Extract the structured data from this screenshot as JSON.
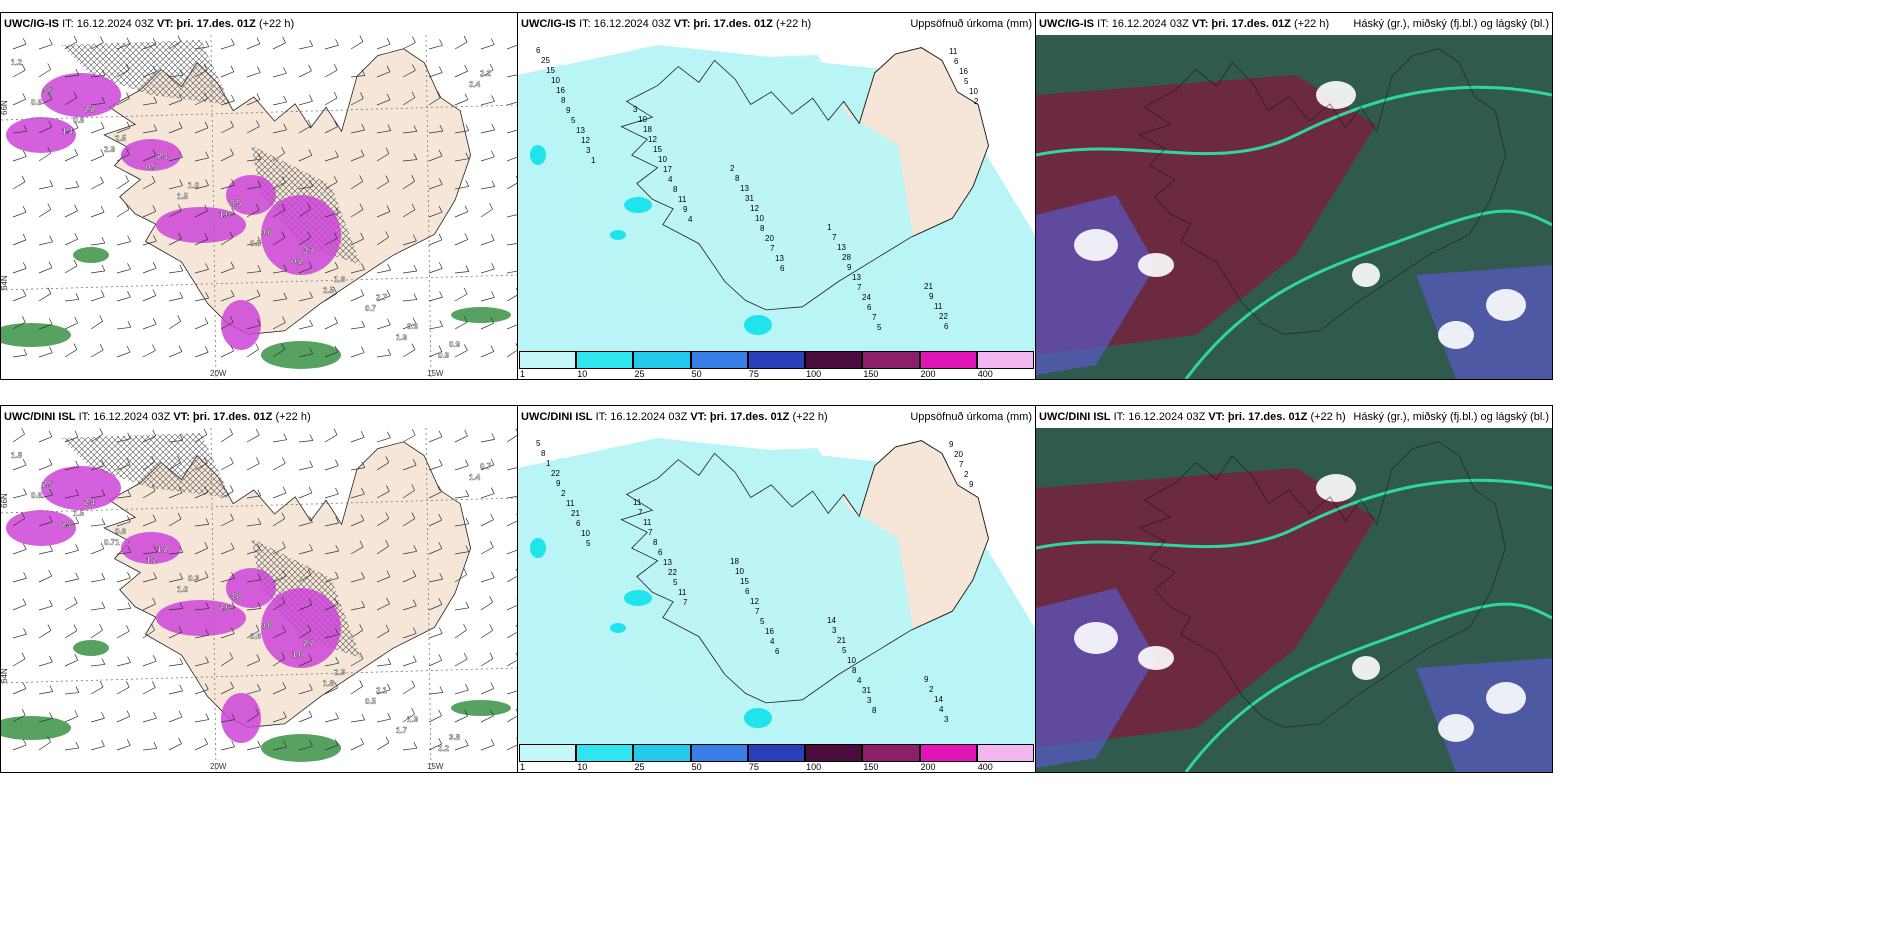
{
  "colors": {
    "land": "#f5e6d8",
    "sea": "#ffffff",
    "precip_light": "#b9f4f6",
    "precip_cyan": "#20e3ec",
    "snow_magenta": "#cc44d8",
    "rain_green": "#2e8b3a",
    "cloud_dark": "#2f5a4d",
    "cloud_maroon": "#7a1e3c",
    "cloud_blue": "#5a58c8",
    "cloud_teal": "#30d6a0"
  },
  "rows": [
    {
      "model": "UWC/IG-IS",
      "it_label": "IT: 16.12.2024 03Z",
      "vt_label": "VT: þri. 17.des. 01Z",
      "lead": "(+22 h)",
      "panel2_title": "Uppsöfnuð úrkoma (mm)",
      "panel3_title": "Háský (gr.), miðský (fj.bl.) og lágský (bl.)",
      "axis_labels": [
        "66N",
        "64N",
        "20W",
        "15W"
      ],
      "left_values": [
        "1.2",
        "2.2",
        "2.4",
        "0.5",
        "3.1",
        "2.7",
        "0.9",
        "3.5",
        "2.5",
        "1.0",
        "0.8",
        "1.6",
        "0.6",
        "2.2",
        "0.8",
        "0.5",
        "1.0",
        "0.2",
        "0.7",
        "0.9",
        "0.6",
        "2.9",
        "1.5",
        "0.8",
        "2.5",
        "1.9",
        "2.4",
        "1.4"
      ],
      "mid_values": [
        "6",
        "3",
        "2",
        "1",
        "21",
        "25",
        "10",
        "8",
        "7",
        "9",
        "15",
        "18",
        "13",
        "13",
        "11",
        "10",
        "12",
        "31",
        "28",
        "22",
        "16",
        "15",
        "12",
        "9",
        "6",
        "8",
        "10",
        "10",
        "13",
        "11",
        "9",
        "17",
        "8",
        "7",
        "6",
        "5",
        "4",
        "20",
        "24",
        "16",
        "13",
        "8",
        "7",
        "6",
        "5",
        "12",
        "11",
        "13",
        "7",
        "10",
        "3",
        "9",
        "6",
        "5",
        "2",
        "1",
        "4"
      ],
      "colorbar_ticks": [
        "1",
        "10",
        "25",
        "50",
        "75",
        "100",
        "150",
        "200",
        "400"
      ]
    },
    {
      "model": "UWC/DINI ISL",
      "it_label": "IT: 16.12.2024 03Z",
      "vt_label": "VT: þri. 17.des. 01Z",
      "lead": "(+22 h)",
      "panel2_title": "Uppsöfnuð úrkoma (mm)",
      "panel3_title": "Háský (gr.), miðský (fj.bl.) og lágský (bl.)",
      "axis_labels": [
        "66N",
        "64N",
        "20W",
        "15W"
      ],
      "left_values": [
        "1.8",
        "2.4",
        "1.2",
        "4.8",
        "2.7",
        "2.1",
        "3.8",
        "2.5",
        "0.6",
        "0.3",
        "0.8",
        "2.3",
        "1.9",
        "0.7",
        "1.5",
        "1.2",
        "2.6",
        "1.0",
        "0.5",
        "2.2",
        "0.6",
        "0.71",
        "1.0",
        "0.6",
        "1.8",
        "1.7",
        "1.4",
        "2.8"
      ],
      "mid_values": [
        "5",
        "11",
        "18",
        "14",
        "9",
        "8",
        "7",
        "10",
        "3",
        "2",
        "1",
        "11",
        "15",
        "21",
        "14",
        "22",
        "7",
        "6",
        "5",
        "4",
        "9",
        "8",
        "12",
        "10",
        "3",
        "2",
        "6",
        "7",
        "8",
        "9",
        "11",
        "13",
        "5",
        "4",
        "20",
        "21",
        "22",
        "16",
        "31",
        "7",
        "6",
        "5",
        "4",
        "3",
        "2",
        "10",
        "11",
        "6",
        "8",
        "9",
        "5",
        "7"
      ],
      "colorbar_ticks": [
        "1",
        "10",
        "25",
        "50",
        "75",
        "100",
        "150",
        "200",
        "400"
      ]
    }
  ]
}
